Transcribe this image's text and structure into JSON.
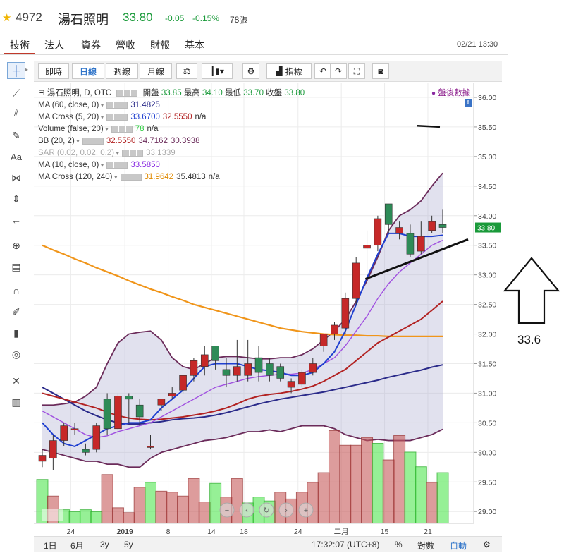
{
  "header": {
    "code": "4972",
    "name": "湯石照明",
    "price": "33.80",
    "change": "-0.05",
    "change_pct": "-0.15%",
    "volume": "78張",
    "star_icon": "star-icon",
    "price_color": "#1a9a3a"
  },
  "tabs": [
    "技術",
    "法人",
    "資券",
    "營收",
    "財報",
    "基本"
  ],
  "datetime": "02/21 13:30",
  "toolbar": {
    "buttons": [
      "即時",
      "日線",
      "週線",
      "月線"
    ],
    "indicators_label": "指標"
  },
  "legend": {
    "main": {
      "title": "湯石照明, D, OTC",
      "open_label": "開盤",
      "open": "33.85",
      "high_label": "最高",
      "high": "34.10",
      "low_label": "最低",
      "low": "33.70",
      "close_label": "收盤",
      "close": "33.80"
    },
    "rows": [
      {
        "label": "MA (60, close, 0)",
        "values": [
          "31.4825"
        ],
        "colors": [
          "#2b2b8a"
        ]
      },
      {
        "label": "MA Cross (5, 20)",
        "values": [
          "33.6700",
          "32.5550",
          "n/a"
        ],
        "colors": [
          "#1f3fd0",
          "#b22222",
          "#333"
        ]
      },
      {
        "label": "Volume (false, 20)",
        "values": [
          "78",
          "n/a"
        ],
        "colors": [
          "#2ecc40",
          "#333"
        ]
      },
      {
        "label": "BB (20, 2)",
        "values": [
          "32.5550",
          "34.7162",
          "30.3938"
        ],
        "colors": [
          "#b22222",
          "#6b2b5a",
          "#6b2b5a"
        ]
      },
      {
        "label": "SAR (0.02, 0.02, 0.2)",
        "values": [
          "33.1339"
        ],
        "colors": [
          "#aaa"
        ],
        "dim": true
      },
      {
        "label": "MA (10, close, 0)",
        "values": [
          "33.5850"
        ],
        "colors": [
          "#8a2be2"
        ]
      },
      {
        "label": "MA Cross (120, 240)",
        "values": [
          "31.9642",
          "35.4813",
          "n/a"
        ],
        "colors": [
          "#e08a00",
          "#333",
          "#333"
        ]
      }
    ],
    "after_hours": "盤後數據"
  },
  "chart_data": {
    "type": "candlestick",
    "y_ticks": [
      "36.00",
      "35.50",
      "35.00",
      "34.50",
      "34.00",
      "33.50",
      "33.00",
      "32.50",
      "32.00",
      "31.50",
      "31.00",
      "30.50",
      "30.00",
      "29.50",
      "29.00"
    ],
    "ylim": [
      28.8,
      36.25
    ],
    "last_price_tag": "33.80",
    "x_ticks": [
      "24",
      "2019",
      "8",
      "14",
      "18",
      "24",
      "二月",
      "15",
      "21"
    ],
    "candles": [
      {
        "o": 29.85,
        "h": 30.05,
        "l": 29.75,
        "c": 29.95
      },
      {
        "o": 29.9,
        "h": 30.3,
        "l": 29.7,
        "c": 30.2
      },
      {
        "o": 30.2,
        "h": 30.5,
        "l": 30.1,
        "c": 30.45
      },
      {
        "o": 30.4,
        "h": 30.5,
        "l": 30.3,
        "c": 30.4
      },
      {
        "o": 30.05,
        "h": 30.15,
        "l": 29.95,
        "c": 30.0
      },
      {
        "o": 30.05,
        "h": 30.5,
        "l": 30.0,
        "c": 30.45
      },
      {
        "o": 30.9,
        "h": 31.0,
        "l": 30.3,
        "c": 30.4
      },
      {
        "o": 30.4,
        "h": 31.0,
        "l": 30.3,
        "c": 30.95
      },
      {
        "o": 30.95,
        "h": 31.0,
        "l": 30.5,
        "c": 30.9
      },
      {
        "o": 30.8,
        "h": 30.9,
        "l": 30.45,
        "c": 30.6
      },
      {
        "o": 30.1,
        "h": 30.3,
        "l": 30.05,
        "c": 30.1
      },
      {
        "o": 30.8,
        "h": 30.9,
        "l": 30.7,
        "c": 30.9
      },
      {
        "o": 30.95,
        "h": 31.1,
        "l": 30.9,
        "c": 31.0
      },
      {
        "o": 31.05,
        "h": 31.3,
        "l": 31.0,
        "c": 31.3
      },
      {
        "o": 31.3,
        "h": 31.6,
        "l": 31.2,
        "c": 31.55
      },
      {
        "o": 31.45,
        "h": 31.8,
        "l": 31.3,
        "c": 31.65
      },
      {
        "o": 31.8,
        "h": 31.8,
        "l": 31.4,
        "c": 31.55
      },
      {
        "o": 31.4,
        "h": 31.6,
        "l": 31.1,
        "c": 31.3
      },
      {
        "o": 31.3,
        "h": 31.9,
        "l": 31.2,
        "c": 31.45
      },
      {
        "o": 31.3,
        "h": 31.9,
        "l": 31.2,
        "c": 31.5
      },
      {
        "o": 31.6,
        "h": 31.8,
        "l": 31.2,
        "c": 31.35
      },
      {
        "o": 31.5,
        "h": 31.6,
        "l": 31.2,
        "c": 31.3
      },
      {
        "o": 31.45,
        "h": 31.5,
        "l": 31.2,
        "c": 31.25
      },
      {
        "o": 31.1,
        "h": 31.25,
        "l": 31.0,
        "c": 31.2
      },
      {
        "o": 31.15,
        "h": 31.4,
        "l": 31.1,
        "c": 31.35
      },
      {
        "o": 31.35,
        "h": 31.6,
        "l": 31.3,
        "c": 31.5
      },
      {
        "o": 31.8,
        "h": 32.0,
        "l": 31.7,
        "c": 32.0
      },
      {
        "o": 32.0,
        "h": 32.2,
        "l": 31.9,
        "c": 32.15
      },
      {
        "o": 32.1,
        "h": 32.7,
        "l": 32.0,
        "c": 32.6
      },
      {
        "o": 32.6,
        "h": 33.3,
        "l": 32.5,
        "c": 33.2
      },
      {
        "o": 33.45,
        "h": 33.75,
        "l": 32.9,
        "c": 33.5
      },
      {
        "o": 33.5,
        "h": 34.0,
        "l": 33.4,
        "c": 33.95
      },
      {
        "o": 34.2,
        "h": 34.2,
        "l": 33.7,
        "c": 33.85
      },
      {
        "o": 33.7,
        "h": 33.9,
        "l": 33.6,
        "c": 33.8
      },
      {
        "o": 33.7,
        "h": 33.85,
        "l": 33.3,
        "c": 33.35
      },
      {
        "o": 33.4,
        "h": 33.9,
        "l": 33.35,
        "c": 33.65
      },
      {
        "o": 33.75,
        "h": 34.0,
        "l": 33.7,
        "c": 33.9
      },
      {
        "o": 33.85,
        "h": 34.1,
        "l": 33.7,
        "c": 33.8
      }
    ],
    "volumes": [
      0.45,
      0.28,
      0.14,
      0.12,
      0.14,
      0.12,
      0.5,
      0.16,
      0.11,
      0.37,
      0.42,
      0.33,
      0.32,
      0.28,
      0.46,
      0.22,
      0.41,
      0.27,
      0.46,
      0.21,
      0.27,
      0.23,
      0.32,
      0.25,
      0.32,
      0.42,
      0.52,
      0.95,
      0.8,
      0.8,
      0.88,
      0.82,
      0.65,
      0.9,
      0.73,
      0.58,
      0.42,
      0.52
    ],
    "volume_colors": [
      "up",
      "down",
      "up",
      "up",
      "up",
      "up",
      "down",
      "down",
      "down",
      "down",
      "up",
      "down",
      "down",
      "down",
      "down",
      "down",
      "up",
      "down",
      "down",
      "up",
      "up",
      "up",
      "down",
      "down",
      "down",
      "down",
      "down",
      "down",
      "down",
      "down",
      "down",
      "up",
      "down",
      "down",
      "up",
      "up",
      "down",
      "up"
    ],
    "annotation_label": "33.6",
    "up_color": "#c62828",
    "down_color": "#2e8b57"
  },
  "bottombar": {
    "ranges": [
      "1日",
      "6月",
      "3y",
      "5y"
    ],
    "time": "17:32:07 (UTC+8)",
    "pct": "%",
    "log": "對數",
    "auto": "自動"
  }
}
